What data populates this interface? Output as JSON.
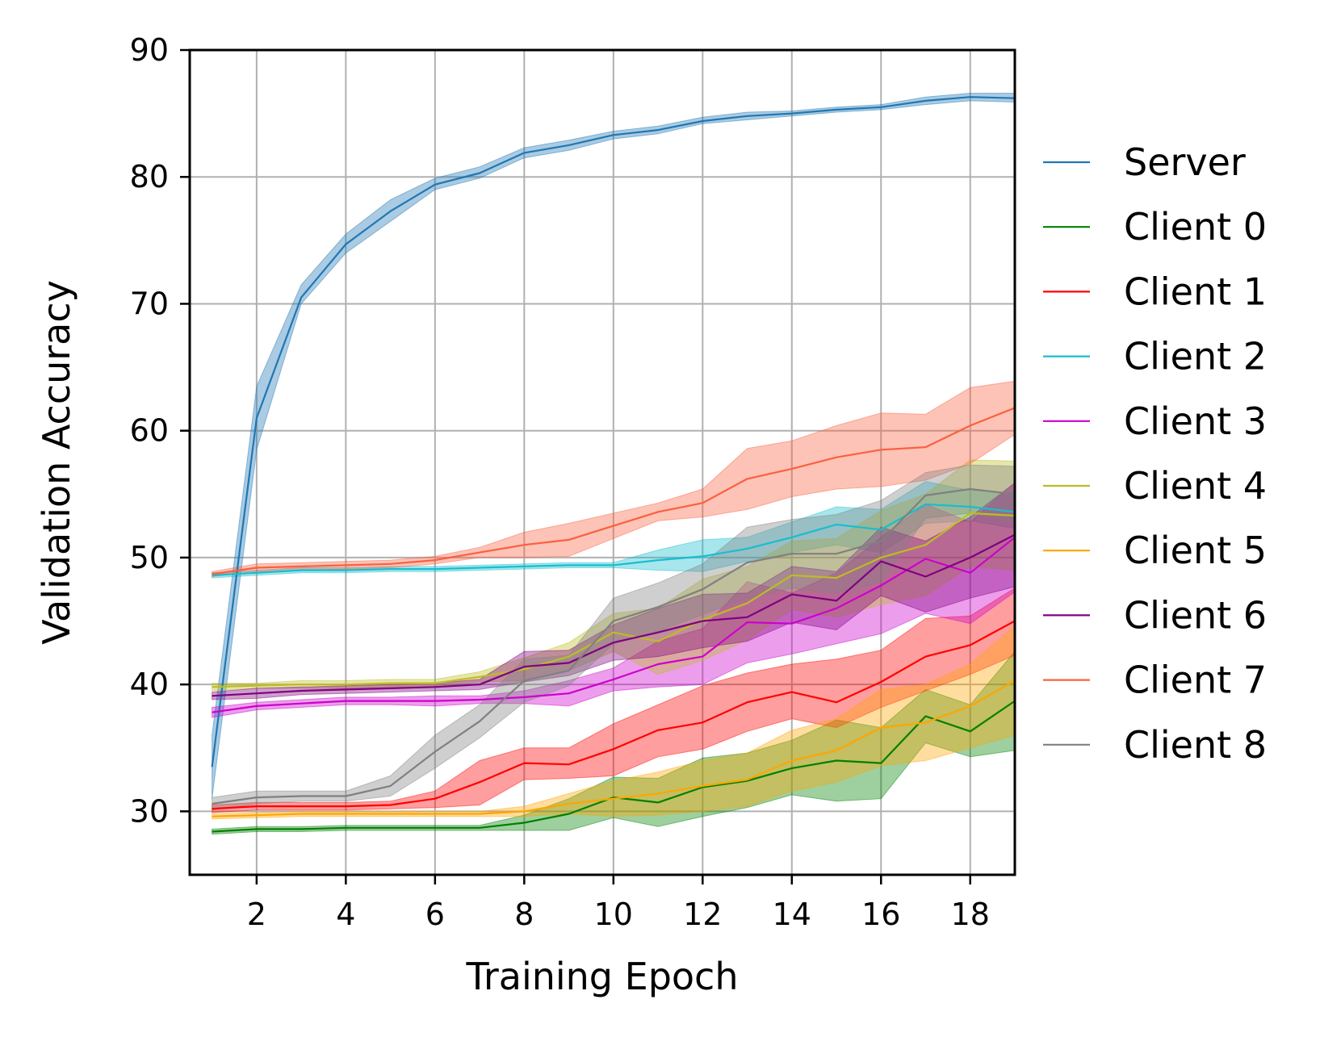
{
  "chart_data": {
    "type": "line",
    "title": "",
    "xlabel": "Training Epoch",
    "ylabel": "Validation Accuracy",
    "xlim": [
      0.5,
      19
    ],
    "ylim": [
      25,
      90
    ],
    "xticks": [
      2,
      4,
      6,
      8,
      10,
      12,
      14,
      16,
      18
    ],
    "yticks": [
      30,
      40,
      50,
      60,
      70,
      80,
      90
    ],
    "grid": true,
    "legend_position": "right",
    "x": [
      1,
      2,
      3,
      4,
      5,
      6,
      7,
      8,
      9,
      10,
      11,
      12,
      13,
      14,
      15,
      16,
      17,
      18,
      19
    ],
    "series": [
      {
        "name": "Server",
        "color": "#1f77b4",
        "values": [
          33.5,
          61.0,
          70.5,
          74.7,
          77.3,
          79.4,
          80.3,
          81.9,
          82.5,
          83.3,
          83.7,
          84.4,
          84.8,
          85.0,
          85.3,
          85.5,
          86.0,
          86.3,
          86.2
        ],
        "lower": [
          31.0,
          58.5,
          70.0,
          74.0,
          76.5,
          79.0,
          79.9,
          81.5,
          82.1,
          83.0,
          83.4,
          84.2,
          84.5,
          84.8,
          85.1,
          85.3,
          85.7,
          86.0,
          85.9
        ],
        "upper": [
          36.0,
          63.5,
          71.5,
          75.5,
          78.2,
          79.9,
          80.8,
          82.3,
          82.9,
          83.6,
          84.0,
          84.7,
          85.1,
          85.2,
          85.5,
          85.7,
          86.3,
          86.6,
          86.6
        ]
      },
      {
        "name": "Client 0",
        "color": "#008000",
        "values": [
          28.4,
          28.6,
          28.6,
          28.7,
          28.7,
          28.7,
          28.7,
          29.1,
          29.8,
          31.1,
          30.7,
          31.9,
          32.4,
          33.4,
          34.0,
          33.8,
          37.5,
          36.3,
          38.7
        ],
        "lower": [
          28.2,
          28.4,
          28.4,
          28.5,
          28.5,
          28.5,
          28.5,
          28.5,
          28.5,
          29.5,
          28.8,
          29.6,
          30.3,
          31.3,
          30.8,
          31.0,
          35.4,
          34.3,
          34.8
        ],
        "upper": [
          28.6,
          28.8,
          28.8,
          28.9,
          28.9,
          28.9,
          28.9,
          29.7,
          31.0,
          32.7,
          32.6,
          34.2,
          34.6,
          35.6,
          37.2,
          36.6,
          39.6,
          38.4,
          42.6
        ]
      },
      {
        "name": "Client 1",
        "color": "#ff0000",
        "values": [
          30.2,
          30.4,
          30.4,
          30.4,
          30.5,
          31.0,
          32.3,
          33.8,
          33.7,
          34.9,
          36.4,
          37.0,
          38.6,
          39.4,
          38.6,
          40.2,
          42.2,
          43.1,
          45.0
        ],
        "lower": [
          29.9,
          30.1,
          30.1,
          30.1,
          30.2,
          30.3,
          30.5,
          32.5,
          32.6,
          32.8,
          34.3,
          34.9,
          36.3,
          37.3,
          36.6,
          38.2,
          39.5,
          40.8,
          42.3
        ],
        "upper": [
          30.5,
          30.7,
          30.7,
          30.7,
          30.8,
          31.6,
          34.0,
          35.0,
          35.0,
          36.9,
          38.4,
          39.9,
          40.9,
          41.6,
          42.0,
          42.7,
          45.2,
          45.4,
          47.6
        ]
      },
      {
        "name": "Client 2",
        "color": "#17becf",
        "values": [
          48.6,
          48.8,
          49.0,
          49.0,
          49.1,
          49.1,
          49.2,
          49.3,
          49.4,
          49.4,
          49.8,
          50.1,
          50.7,
          51.6,
          52.6,
          52.2,
          54.2,
          54.0,
          53.6
        ],
        "lower": [
          48.4,
          48.6,
          48.8,
          48.8,
          48.9,
          48.9,
          49.0,
          49.1,
          49.2,
          49.2,
          49.0,
          48.9,
          49.7,
          50.4,
          51.0,
          50.4,
          52.7,
          52.9,
          52.3
        ],
        "upper": [
          48.8,
          49.0,
          49.2,
          49.2,
          49.3,
          49.3,
          49.4,
          49.5,
          49.6,
          49.6,
          50.6,
          51.4,
          51.6,
          52.8,
          54.0,
          53.8,
          56.0,
          55.3,
          55.1
        ]
      },
      {
        "name": "Client 3",
        "color": "#cc00cc",
        "values": [
          37.8,
          38.3,
          38.5,
          38.7,
          38.7,
          38.7,
          38.8,
          39.0,
          39.3,
          40.4,
          41.6,
          42.2,
          44.9,
          44.8,
          46.0,
          47.8,
          49.9,
          48.8,
          51.6
        ],
        "lower": [
          37.4,
          38.0,
          38.2,
          38.4,
          38.4,
          38.3,
          38.5,
          38.5,
          38.3,
          39.5,
          39.8,
          40.0,
          41.7,
          42.4,
          43.2,
          44.0,
          45.6,
          44.8,
          47.3
        ],
        "upper": [
          38.2,
          38.6,
          38.8,
          39.0,
          39.0,
          39.1,
          39.1,
          39.5,
          40.3,
          41.3,
          43.4,
          44.4,
          48.1,
          47.2,
          48.8,
          51.6,
          54.2,
          52.8,
          55.9
        ]
      },
      {
        "name": "Client 4",
        "color": "#bcbd22",
        "values": [
          39.8,
          39.9,
          40.0,
          40.0,
          40.1,
          40.1,
          40.6,
          41.2,
          42.2,
          44.1,
          43.4,
          45.1,
          46.4,
          48.6,
          48.4,
          50.0,
          51.0,
          53.5,
          53.3
        ],
        "lower": [
          39.5,
          39.7,
          39.7,
          39.7,
          39.8,
          39.8,
          40.2,
          40.3,
          41.1,
          42.6,
          40.8,
          41.9,
          43.5,
          45.9,
          45.3,
          46.3,
          47.0,
          49.3,
          49.0
        ],
        "upper": [
          40.1,
          40.1,
          40.3,
          40.3,
          40.4,
          40.4,
          41.0,
          42.1,
          43.3,
          45.6,
          46.0,
          48.3,
          49.3,
          51.3,
          51.5,
          53.7,
          55.0,
          57.7,
          57.6
        ]
      },
      {
        "name": "Client 5",
        "color": "#ffa500",
        "values": [
          29.6,
          29.7,
          29.8,
          29.8,
          29.8,
          29.8,
          29.8,
          30.0,
          30.6,
          31.0,
          31.4,
          32.0,
          32.5,
          34.0,
          34.8,
          36.6,
          37.0,
          38.3,
          40.3
        ],
        "lower": [
          29.4,
          29.5,
          29.6,
          29.6,
          29.6,
          29.6,
          29.6,
          29.6,
          29.8,
          29.6,
          29.7,
          30.0,
          30.4,
          31.6,
          32.3,
          33.6,
          34.0,
          35.0,
          36.0
        ],
        "upper": [
          29.8,
          29.9,
          30.0,
          30.0,
          30.0,
          30.0,
          30.0,
          30.4,
          31.4,
          32.4,
          33.1,
          34.0,
          34.6,
          36.4,
          37.3,
          39.6,
          40.0,
          41.6,
          44.6
        ]
      },
      {
        "name": "Client 6",
        "color": "#800080",
        "values": [
          39.1,
          39.3,
          39.5,
          39.6,
          39.7,
          39.8,
          40.0,
          41.4,
          41.7,
          43.3,
          44.1,
          45.0,
          45.3,
          47.1,
          46.6,
          49.7,
          48.5,
          50.0,
          51.8
        ],
        "lower": [
          38.8,
          38.9,
          39.2,
          39.3,
          39.4,
          39.5,
          39.6,
          40.2,
          40.7,
          41.9,
          42.2,
          42.9,
          43.4,
          44.9,
          44.3,
          47.0,
          45.7,
          46.8,
          47.7
        ],
        "upper": [
          39.4,
          39.7,
          39.8,
          39.9,
          40.0,
          40.1,
          40.4,
          42.6,
          42.7,
          44.7,
          46.0,
          47.1,
          47.2,
          49.3,
          48.9,
          52.4,
          51.3,
          53.2,
          55.9
        ]
      },
      {
        "name": "Client 7",
        "color": "#fa6040",
        "values": [
          48.7,
          49.2,
          49.3,
          49.4,
          49.5,
          49.8,
          50.4,
          51.0,
          51.4,
          52.5,
          53.6,
          54.3,
          56.2,
          57.0,
          57.9,
          58.5,
          58.7,
          60.4,
          61.8
        ],
        "lower": [
          48.5,
          48.9,
          49.0,
          49.1,
          49.2,
          49.5,
          50.0,
          50.0,
          50.1,
          51.5,
          52.9,
          53.2,
          53.8,
          54.8,
          55.4,
          55.6,
          56.1,
          57.4,
          59.7
        ],
        "upper": [
          48.9,
          49.5,
          49.6,
          49.7,
          49.8,
          50.1,
          50.8,
          52.0,
          52.7,
          53.5,
          54.3,
          55.4,
          58.6,
          59.2,
          60.4,
          61.4,
          61.3,
          63.4,
          63.9
        ]
      },
      {
        "name": "Client 8",
        "color": "#808080",
        "values": [
          30.6,
          31.1,
          31.2,
          31.2,
          32.0,
          34.7,
          37.1,
          40.3,
          41.1,
          45.0,
          46.1,
          47.5,
          49.6,
          50.3,
          50.3,
          51.3,
          54.9,
          55.4,
          55.0
        ],
        "lower": [
          30.1,
          30.6,
          30.8,
          30.8,
          31.2,
          33.4,
          35.8,
          38.6,
          39.9,
          43.2,
          44.2,
          45.5,
          46.8,
          47.6,
          47.2,
          48.1,
          53.1,
          53.5,
          52.8
        ],
        "upper": [
          31.1,
          31.6,
          31.6,
          31.6,
          32.8,
          36.0,
          38.4,
          42.0,
          42.3,
          46.8,
          48.0,
          49.5,
          52.4,
          53.0,
          53.4,
          54.5,
          56.7,
          57.3,
          57.2
        ]
      }
    ]
  }
}
